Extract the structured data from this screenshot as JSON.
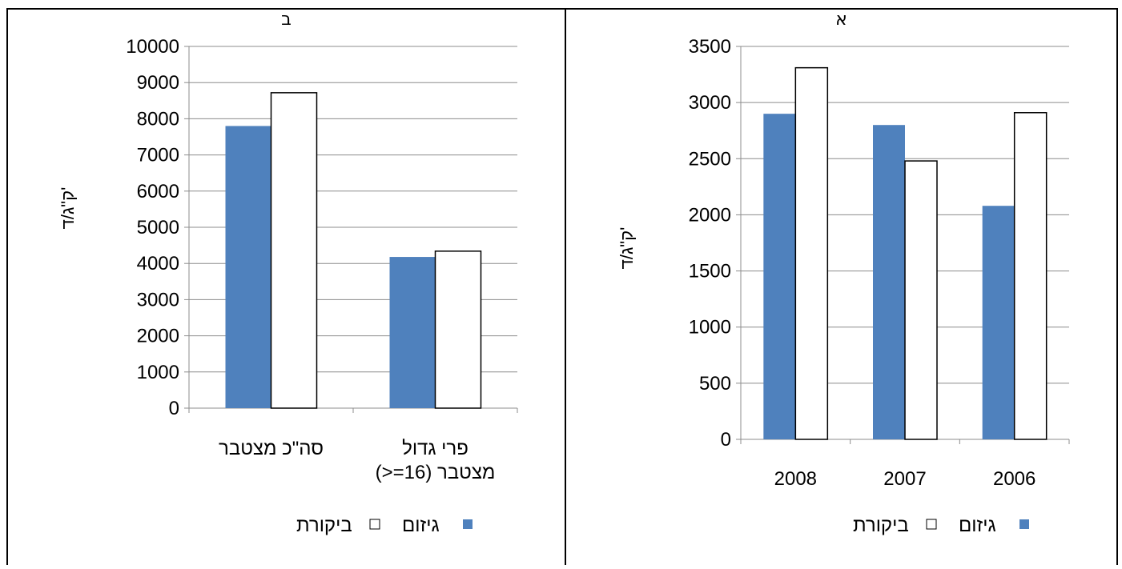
{
  "chart_data": [
    {
      "type": "bar",
      "title": "ב",
      "categories": [
        "סה\"כ מצטבר",
        "פרי גדול (>=16) מצטבר"
      ],
      "category_lines": [
        [
          "סה\"כ מצטבר"
        ],
        [
          "פרי גדול",
          "(>=16) מצטבר"
        ]
      ],
      "series": [
        {
          "name": "גיזום",
          "values": [
            7800,
            4180
          ],
          "color": "#4f81bd"
        },
        {
          "name": "ביקורת",
          "values": [
            8720,
            4340
          ],
          "color": "#ffffff"
        }
      ],
      "ylabel": "ק\"ג/ד'",
      "ylim": [
        0,
        10000
      ],
      "yticks": [
        "0",
        "1000",
        "2000",
        "3000",
        "4000",
        "5000",
        "6000",
        "7000",
        "8000",
        "9000",
        "10000"
      ],
      "grid": true,
      "legend_position": "bottom"
    },
    {
      "type": "bar",
      "title": "א",
      "categories": [
        "2008",
        "2007",
        "2006"
      ],
      "category_lines": [
        [
          "2008"
        ],
        [
          "2007"
        ],
        [
          "2006"
        ]
      ],
      "series": [
        {
          "name": "גיזום",
          "values": [
            2900,
            2800,
            2080
          ],
          "color": "#4f81bd"
        },
        {
          "name": "ביקורת",
          "values": [
            3310,
            2480,
            2910
          ],
          "color": "#ffffff"
        }
      ],
      "ylabel": "ק\"ג/ד'",
      "ylim": [
        0,
        3500
      ],
      "yticks": [
        "0",
        "500",
        "1000",
        "1500",
        "2000",
        "2500",
        "3000",
        "3500"
      ],
      "grid": true,
      "legend_position": "bottom"
    }
  ]
}
